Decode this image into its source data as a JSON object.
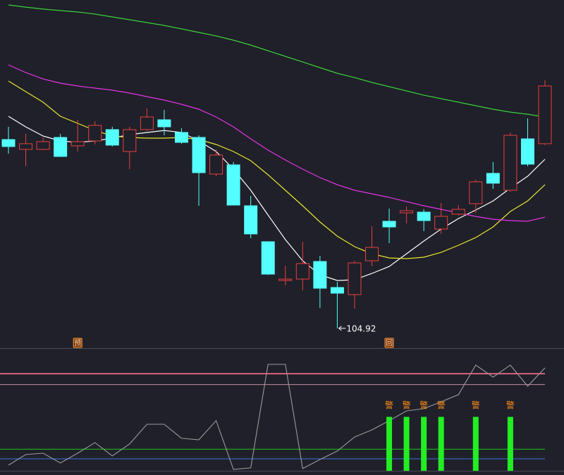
{
  "chart_data": [
    {
      "type": "candlestick",
      "ylim": [
        103,
        142
      ],
      "up_color": "#e8403f",
      "down_color": "#54ffff",
      "open": [
        126.24,
        125.13,
        125.13,
        126.48,
        125.53,
        126.08,
        127.36,
        124.89,
        127.36,
        128.47,
        127.04,
        126.48,
        122.34,
        123.38,
        118.76,
        114.7,
        110.32,
        110.48,
        112.47,
        109.53,
        108.73,
        112.55,
        117.01,
        117.96,
        118.04,
        116.13,
        117.81,
        119.0,
        122.42,
        120.51,
        126.32,
        125.77
      ],
      "close": [
        125.45,
        125.77,
        126.0,
        124.33,
        126.0,
        127.84,
        125.61,
        127.36,
        128.79,
        127.68,
        125.92,
        122.5,
        124.49,
        118.84,
        115.58,
        111.04,
        110.48,
        112.23,
        109.45,
        108.89,
        112.31,
        114.06,
        116.37,
        118.2,
        117.09,
        117.57,
        118.36,
        121.47,
        121.31,
        126.72,
        123.46,
        132.29
      ],
      "high": [
        127.68,
        126.88,
        126.48,
        126.88,
        128.47,
        128.31,
        127.68,
        127.68,
        129.75,
        129.59,
        127.52,
        126.72,
        125.13,
        123.7,
        119.88,
        114.7,
        111.99,
        114.7,
        113.11,
        110.16,
        112.55,
        116.45,
        118.44,
        118.68,
        118.36,
        119.08,
        118.84,
        121.71,
        123.7,
        127.04,
        128.63,
        132.93
      ],
      "low": [
        124.65,
        123.22,
        125.05,
        124.33,
        124.89,
        125.69,
        125.45,
        122.9,
        127.2,
        126.72,
        125.77,
        118.76,
        122.1,
        118.84,
        115.1,
        110.96,
        109.77,
        109.21,
        107.22,
        104.92,
        107.14,
        111.92,
        114.54,
        116.77,
        115.9,
        115.58,
        117.65,
        117.96,
        120.67,
        120.35,
        123.22,
        125.61
      ],
      "low_label": {
        "index": 19,
        "text": "104.92"
      },
      "series": [
        {
          "color": "#ffffff",
          "values": [
            128.87,
            127.67,
            126.64,
            126.08,
            125.92,
            126.08,
            126.4,
            126.8,
            127.04,
            127.27,
            127.04,
            126.08,
            124.89,
            122.9,
            120.51,
            117.72,
            114.94,
            112.55,
            110.96,
            110.32,
            110.4,
            111.12,
            111.91,
            113.34,
            114.78,
            116.13,
            117.32,
            118.28,
            119.31,
            120.75,
            122.1,
            124.01
          ]
        },
        {
          "color": "#e6e62e",
          "values": [
            132.85,
            131.65,
            130.46,
            128.87,
            128.07,
            127.27,
            126.64,
            126.48,
            126.4,
            126.4,
            126.48,
            126.24,
            125.68,
            124.89,
            123.85,
            122.26,
            120.51,
            118.76,
            116.93,
            115.33,
            114.14,
            113.34,
            112.87,
            112.79,
            112.95,
            113.5,
            114.3,
            115.17,
            116.37,
            118.12,
            119.31,
            121.14
          ]
        },
        {
          "color": "#e633e6",
          "values": [
            134.68,
            133.8,
            133.08,
            132.61,
            132.29,
            132.05,
            131.81,
            131.49,
            131.09,
            130.7,
            130.22,
            129.66,
            128.79,
            127.67,
            126.32,
            125.05,
            123.93,
            122.9,
            121.94,
            121.14,
            120.51,
            120.11,
            119.71,
            119.23,
            118.76,
            118.36,
            117.96,
            117.56,
            117.24,
            117.09,
            117.01,
            117.48
          ]
        },
        {
          "color": "#3ccf3c",
          "values": [
            141.44,
            141.2,
            140.97,
            140.81,
            140.65,
            140.41,
            140.09,
            139.77,
            139.45,
            139.13,
            138.74,
            138.34,
            137.94,
            137.46,
            136.91,
            136.27,
            135.63,
            135.0,
            134.36,
            133.72,
            133.24,
            132.69,
            132.21,
            131.73,
            131.25,
            130.86,
            130.46,
            130.06,
            129.66,
            129.34,
            129.1,
            128.79
          ]
        }
      ],
      "annotations": [
        {
          "index": 4,
          "text": "预"
        },
        {
          "index": 22,
          "text": "回"
        }
      ]
    },
    {
      "type": "line",
      "ylim": [
        0,
        100
      ],
      "series": [
        {
          "color": "#9a9a9a",
          "values": [
            4.7,
            13.5,
            14.7,
            6.5,
            14.7,
            23.5,
            12.4,
            22.4,
            38.8,
            38.8,
            27.1,
            25.9,
            41.8,
            1.2,
            2.4,
            88.8,
            88.8,
            1.8,
            9.4,
            16.5,
            28.2,
            34.1,
            41.8,
            50,
            51.8,
            57.6,
            63.5,
            88.2,
            78.2,
            88.2,
            70.6,
            85.9
          ]
        }
      ],
      "levels": [
        {
          "value": 81,
          "color": "#ff6f8f"
        },
        {
          "value": 72,
          "color": "#c98aa0"
        },
        {
          "value": 18,
          "color": "#22c522"
        },
        {
          "value": 10,
          "color": "#3a6fe0"
        }
      ],
      "bars": {
        "color": "#22ee22",
        "label_color": "#ff8c1a",
        "values": [
          null,
          null,
          null,
          null,
          null,
          null,
          null,
          null,
          null,
          null,
          null,
          null,
          null,
          null,
          null,
          null,
          null,
          null,
          null,
          null,
          null,
          null,
          45,
          45,
          45,
          45,
          null,
          45,
          null,
          45,
          null,
          null
        ],
        "labels": [
          null,
          null,
          null,
          null,
          null,
          null,
          null,
          null,
          null,
          null,
          null,
          null,
          null,
          null,
          null,
          null,
          null,
          null,
          null,
          null,
          null,
          null,
          "警",
          "警",
          "警",
          "警",
          null,
          "警",
          null,
          "警",
          null,
          null
        ]
      }
    }
  ]
}
